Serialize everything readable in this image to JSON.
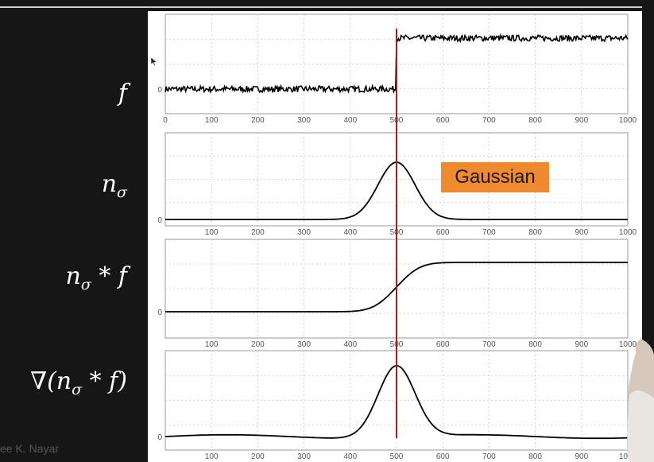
{
  "labels": {
    "row1": "f",
    "row2_main": "n",
    "row2_sub": "σ",
    "row3_main": "n",
    "row3_sub": "σ",
    "row3_rest": " * f",
    "row4_pre": "∇(n",
    "row4_sub": "σ",
    "row4_rest": " * f)"
  },
  "callout": "Gaussian",
  "watermark": "ee K. Nayar",
  "colors": {
    "marker": "#b01818",
    "callout_bg": "#f08a2f",
    "curve": "#000000"
  },
  "icons": {
    "cursor": "mouse-pointer"
  },
  "chart_data": [
    {
      "type": "line",
      "name": "f",
      "xlim": [
        0,
        1000
      ],
      "xticks": [
        0,
        100,
        200,
        300,
        400,
        500,
        600,
        700,
        800,
        900,
        1000
      ],
      "yticks": [
        "0"
      ],
      "grid": true,
      "description_values": {
        "step_at": 500,
        "low_level": 0,
        "high_level": 1
      },
      "noise": 0.06
    },
    {
      "type": "line",
      "name": "n_sigma",
      "xlim": [
        0,
        1000
      ],
      "xticks": [
        100,
        200,
        300,
        400,
        500,
        600,
        700,
        800,
        900,
        1000
      ],
      "yticks": [
        "0"
      ],
      "grid": true,
      "description_values": {
        "mean": 500,
        "sigma": 40,
        "peak": 1
      }
    },
    {
      "type": "line",
      "name": "n_sigma_conv_f",
      "xlim": [
        0,
        1000
      ],
      "xticks": [
        100,
        200,
        300,
        400,
        500,
        600,
        700,
        800,
        900,
        1000
      ],
      "yticks": [
        "0"
      ],
      "grid": true,
      "description_values": {
        "center": 500,
        "sigma": 40,
        "low_level": 0,
        "high_level": 1
      }
    },
    {
      "type": "line",
      "name": "grad_n_sigma_conv_f",
      "xlim": [
        0,
        1000
      ],
      "xticks": [
        100,
        200,
        300,
        400,
        500,
        600,
        700,
        800,
        900,
        1000
      ],
      "yticks": [
        "0"
      ],
      "grid": true,
      "description_values": {
        "mean": 500,
        "sigma": 40,
        "peak": 1
      }
    }
  ]
}
